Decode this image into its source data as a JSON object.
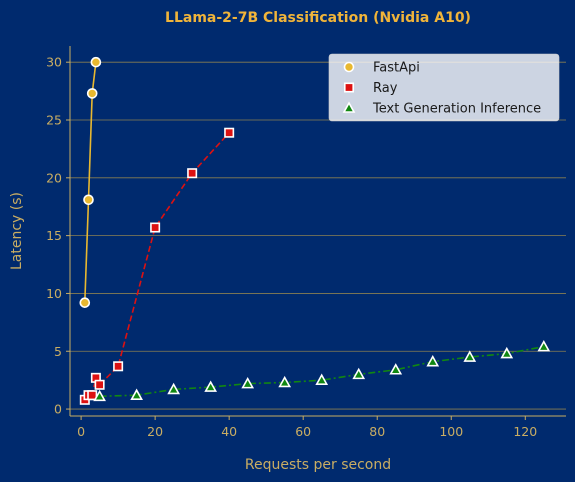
{
  "chart_data": {
    "type": "line",
    "title": "LLama-2-7B Classification (Nvidia A10)",
    "xlabel": "Requests per second",
    "ylabel": "Latency (s)",
    "xlim": [
      -3,
      131
    ],
    "ylim": [
      -0.6,
      31.4
    ],
    "xticks": [
      0,
      20,
      40,
      60,
      80,
      100,
      120
    ],
    "yticks": [
      0,
      5,
      10,
      15,
      20,
      25,
      30
    ],
    "grid": "horizontal",
    "legend_position": "top-right",
    "colors": {
      "background": "#002a6e",
      "grid": "#8a7f52",
      "axis": "#c9ad63",
      "title": "#f0b43a"
    },
    "series": [
      {
        "name": "FastApi",
        "marker": "circle",
        "line_style": "solid",
        "color": "#e8b830",
        "x": [
          1,
          2,
          3,
          4
        ],
        "y": [
          9.2,
          18.1,
          27.3,
          30.0
        ]
      },
      {
        "name": "Ray",
        "marker": "square",
        "line_style": "dashed",
        "color": "#dd1111",
        "x": [
          1,
          2,
          3,
          4,
          5,
          10,
          20,
          30,
          40
        ],
        "y": [
          0.8,
          1.2,
          1.2,
          2.7,
          2.1,
          3.7,
          15.7,
          20.4,
          23.9
        ]
      },
      {
        "name": "Text Generation Inference",
        "marker": "triangle",
        "line_style": "dashdot",
        "color": "#118811",
        "x": [
          5,
          15,
          25,
          35,
          45,
          55,
          65,
          75,
          85,
          95,
          105,
          115,
          125
        ],
        "y": [
          1.1,
          1.2,
          1.7,
          1.9,
          2.2,
          2.3,
          2.5,
          3.0,
          3.4,
          4.1,
          4.5,
          4.8,
          5.4
        ]
      }
    ]
  }
}
